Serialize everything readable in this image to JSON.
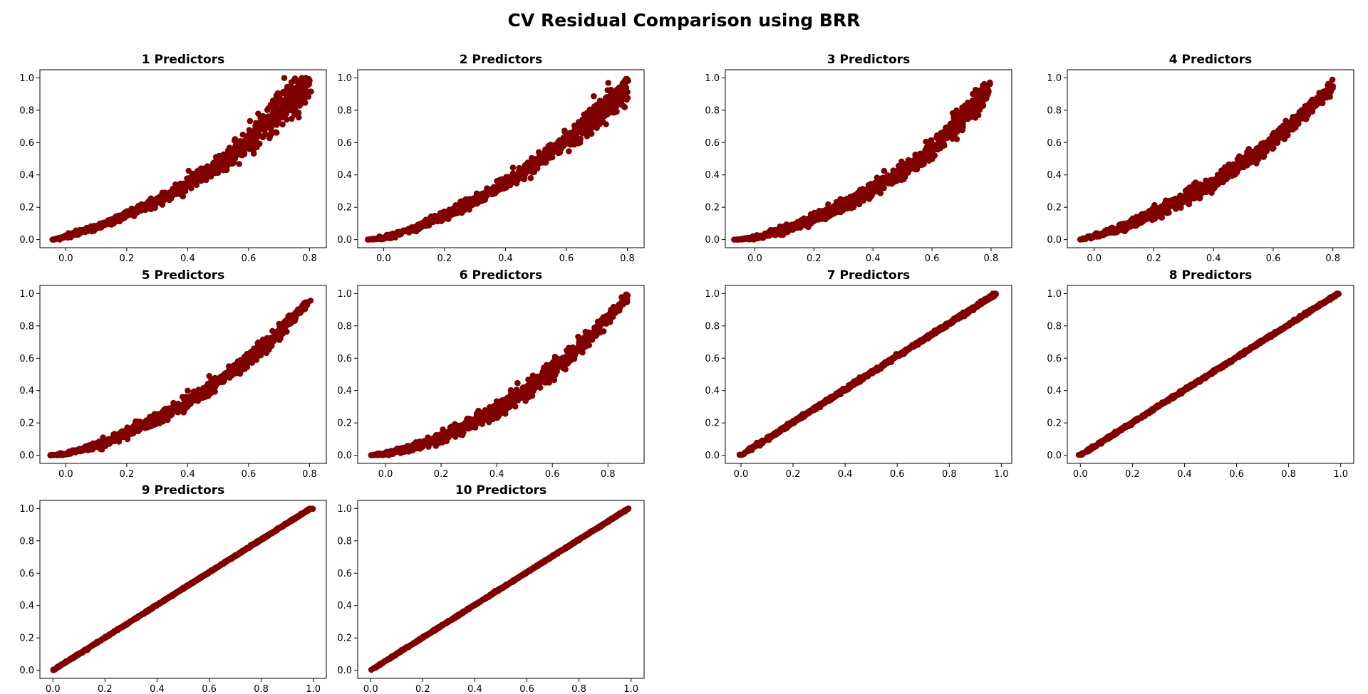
{
  "figure": {
    "title": "CV Residual Comparison using BRR",
    "marker_color": "#800000"
  },
  "chart_data": [
    {
      "type": "scatter",
      "title": "1 Predictors",
      "xlim": [
        -0.085,
        0.855
      ],
      "ylim": [
        -0.05,
        1.05
      ],
      "xticks": [
        0.0,
        0.2,
        0.4,
        0.6,
        0.8
      ],
      "xtick_labels": [
        "0.0",
        "0.2",
        "0.4",
        "0.6",
        "0.8"
      ],
      "yticks": [
        0.0,
        0.2,
        0.4,
        0.6,
        0.8,
        1.0
      ],
      "ytick_labels": [
        "0.0",
        "0.2",
        "0.4",
        "0.6",
        "0.8",
        "1.0"
      ],
      "trend_x": [
        -0.04,
        0.0,
        0.1,
        0.2,
        0.3,
        0.4,
        0.5,
        0.6,
        0.7,
        0.8
      ],
      "trend_y": [
        0.0,
        0.02,
        0.08,
        0.15,
        0.24,
        0.34,
        0.46,
        0.61,
        0.8,
        0.97
      ],
      "spread": [
        0.0,
        0.01,
        0.015,
        0.02,
        0.025,
        0.035,
        0.05,
        0.06,
        0.1,
        0.08
      ],
      "grid": false
    },
    {
      "type": "scatter",
      "title": "2 Predictors",
      "xlim": [
        -0.085,
        0.855
      ],
      "ylim": [
        -0.05,
        1.05
      ],
      "xticks": [
        0.0,
        0.2,
        0.4,
        0.6,
        0.8
      ],
      "xtick_labels": [
        "0.0",
        "0.2",
        "0.4",
        "0.6",
        "0.8"
      ],
      "yticks": [
        0.0,
        0.2,
        0.4,
        0.6,
        0.8,
        1.0
      ],
      "ytick_labels": [
        "0.0",
        "0.2",
        "0.4",
        "0.6",
        "0.8",
        "1.0"
      ],
      "trend_x": [
        -0.05,
        0.0,
        0.1,
        0.2,
        0.3,
        0.4,
        0.5,
        0.6,
        0.7,
        0.8
      ],
      "trend_y": [
        0.0,
        0.01,
        0.07,
        0.15,
        0.24,
        0.35,
        0.47,
        0.61,
        0.77,
        0.95
      ],
      "spread": [
        0.0,
        0.01,
        0.015,
        0.02,
        0.025,
        0.03,
        0.04,
        0.05,
        0.07,
        0.08
      ],
      "grid": false
    },
    {
      "type": "scatter",
      "title": "3 Predictors",
      "xlim": [
        -0.1,
        0.87
      ],
      "ylim": [
        -0.05,
        1.05
      ],
      "xticks": [
        0.0,
        0.2,
        0.4,
        0.6,
        0.8
      ],
      "xtick_labels": [
        "0.0",
        "0.2",
        "0.4",
        "0.6",
        "0.8"
      ],
      "yticks": [
        0.0,
        0.2,
        0.4,
        0.6,
        0.8,
        1.0
      ],
      "ytick_labels": [
        "0.0",
        "0.2",
        "0.4",
        "0.6",
        "0.8",
        "1.0"
      ],
      "trend_x": [
        -0.06,
        0.0,
        0.1,
        0.2,
        0.3,
        0.4,
        0.5,
        0.6,
        0.7,
        0.8
      ],
      "trend_y": [
        0.0,
        0.01,
        0.06,
        0.13,
        0.21,
        0.31,
        0.42,
        0.56,
        0.74,
        0.95
      ],
      "spread": [
        0.0,
        0.01,
        0.02,
        0.025,
        0.03,
        0.035,
        0.04,
        0.05,
        0.06,
        0.05
      ],
      "grid": false
    },
    {
      "type": "scatter",
      "title": "4 Predictors",
      "xlim": [
        -0.09,
        0.87
      ],
      "ylim": [
        -0.05,
        1.05
      ],
      "xticks": [
        0.0,
        0.2,
        0.4,
        0.6,
        0.8
      ],
      "xtick_labels": [
        "0.0",
        "0.2",
        "0.4",
        "0.6",
        "0.8"
      ],
      "yticks": [
        0.0,
        0.2,
        0.4,
        0.6,
        0.8,
        1.0
      ],
      "ytick_labels": [
        "0.0",
        "0.2",
        "0.4",
        "0.6",
        "0.8",
        "1.0"
      ],
      "trend_x": [
        -0.05,
        0.0,
        0.1,
        0.2,
        0.3,
        0.4,
        0.5,
        0.6,
        0.7,
        0.8
      ],
      "trend_y": [
        0.0,
        0.02,
        0.08,
        0.16,
        0.25,
        0.35,
        0.47,
        0.61,
        0.77,
        0.95
      ],
      "spread": [
        0.0,
        0.01,
        0.02,
        0.03,
        0.035,
        0.04,
        0.04,
        0.04,
        0.035,
        0.03
      ],
      "grid": false
    },
    {
      "type": "scatter",
      "title": "5 Predictors",
      "xlim": [
        -0.085,
        0.855
      ],
      "ylim": [
        -0.05,
        1.05
      ],
      "xticks": [
        0.0,
        0.2,
        0.4,
        0.6,
        0.8
      ],
      "xtick_labels": [
        "0.0",
        "0.2",
        "0.4",
        "0.6",
        "0.8"
      ],
      "yticks": [
        0.0,
        0.2,
        0.4,
        0.6,
        0.8,
        1.0
      ],
      "ytick_labels": [
        "0.0",
        "0.2",
        "0.4",
        "0.6",
        "0.8",
        "1.0"
      ],
      "trend_x": [
        -0.05,
        0.0,
        0.1,
        0.2,
        0.3,
        0.4,
        0.5,
        0.6,
        0.7,
        0.8
      ],
      "trend_y": [
        0.0,
        0.01,
        0.06,
        0.14,
        0.23,
        0.33,
        0.45,
        0.59,
        0.76,
        0.96
      ],
      "spread": [
        0.0,
        0.01,
        0.02,
        0.025,
        0.03,
        0.035,
        0.035,
        0.035,
        0.03,
        0.02
      ],
      "grid": false
    },
    {
      "type": "scatter",
      "title": "6 Predictors",
      "xlim": [
        -0.1,
        0.93
      ],
      "ylim": [
        -0.05,
        1.05
      ],
      "xticks": [
        0.0,
        0.2,
        0.4,
        0.6,
        0.8
      ],
      "xtick_labels": [
        "0.0",
        "0.2",
        "0.4",
        "0.6",
        "0.8"
      ],
      "yticks": [
        0.0,
        0.2,
        0.4,
        0.6,
        0.8,
        1.0
      ],
      "ytick_labels": [
        "0.0",
        "0.2",
        "0.4",
        "0.6",
        "0.8",
        "1.0"
      ],
      "trend_x": [
        -0.05,
        0.0,
        0.1,
        0.2,
        0.3,
        0.4,
        0.5,
        0.6,
        0.7,
        0.8,
        0.87
      ],
      "trend_y": [
        0.0,
        0.01,
        0.05,
        0.11,
        0.19,
        0.28,
        0.39,
        0.52,
        0.67,
        0.85,
        0.98
      ],
      "spread": [
        0.0,
        0.01,
        0.02,
        0.03,
        0.035,
        0.04,
        0.045,
        0.045,
        0.04,
        0.03,
        0.02
      ],
      "grid": false
    },
    {
      "type": "scatter",
      "title": "7 Predictors",
      "xlim": [
        -0.06,
        1.04
      ],
      "ylim": [
        -0.05,
        1.05
      ],
      "xticks": [
        0.0,
        0.2,
        0.4,
        0.6,
        0.8,
        1.0
      ],
      "xtick_labels": [
        "0.0",
        "0.2",
        "0.4",
        "0.6",
        "0.8",
        "1.0"
      ],
      "yticks": [
        0.0,
        0.2,
        0.4,
        0.6,
        0.8,
        1.0
      ],
      "ytick_labels": [
        "0.0",
        "0.2",
        "0.4",
        "0.6",
        "0.8",
        "1.0"
      ],
      "trend_x": [
        0.0,
        0.98
      ],
      "trend_y": [
        0.0,
        1.0
      ],
      "spread": [
        0.008,
        0.008
      ],
      "grid": false
    },
    {
      "type": "scatter",
      "title": "8 Predictors",
      "xlim": [
        -0.05,
        1.05
      ],
      "ylim": [
        -0.05,
        1.05
      ],
      "xticks": [
        0.0,
        0.2,
        0.4,
        0.6,
        0.8,
        1.0
      ],
      "xtick_labels": [
        "0.0",
        "0.2",
        "0.4",
        "0.6",
        "0.8",
        "1.0"
      ],
      "yticks": [
        0.0,
        0.2,
        0.4,
        0.6,
        0.8,
        1.0
      ],
      "ytick_labels": [
        "0.0",
        "0.2",
        "0.4",
        "0.6",
        "0.8",
        "1.0"
      ],
      "trend_x": [
        0.0,
        0.99
      ],
      "trend_y": [
        0.0,
        1.0
      ],
      "spread": [
        0.006,
        0.006
      ],
      "grid": false
    },
    {
      "type": "scatter",
      "title": "9 Predictors",
      "xlim": [
        -0.05,
        1.05
      ],
      "ylim": [
        -0.05,
        1.05
      ],
      "xticks": [
        0.0,
        0.2,
        0.4,
        0.6,
        0.8,
        1.0
      ],
      "xtick_labels": [
        "0.0",
        "0.2",
        "0.4",
        "0.6",
        "0.8",
        "1.0"
      ],
      "yticks": [
        0.0,
        0.2,
        0.4,
        0.6,
        0.8,
        1.0
      ],
      "ytick_labels": [
        "0.0",
        "0.2",
        "0.4",
        "0.6",
        "0.8",
        "1.0"
      ],
      "trend_x": [
        0.0,
        0.99
      ],
      "trend_y": [
        0.0,
        1.0
      ],
      "spread": [
        0.003,
        0.003
      ],
      "grid": false
    },
    {
      "type": "scatter",
      "title": "10 Predictors",
      "xlim": [
        -0.05,
        1.05
      ],
      "ylim": [
        -0.05,
        1.05
      ],
      "xticks": [
        0.0,
        0.2,
        0.4,
        0.6,
        0.8,
        1.0
      ],
      "xtick_labels": [
        "0.0",
        "0.2",
        "0.4",
        "0.6",
        "0.8",
        "1.0"
      ],
      "yticks": [
        0.0,
        0.2,
        0.4,
        0.6,
        0.8,
        1.0
      ],
      "ytick_labels": [
        "0.0",
        "0.2",
        "0.4",
        "0.6",
        "0.8",
        "1.0"
      ],
      "trend_x": [
        0.0,
        0.99
      ],
      "trend_y": [
        0.0,
        1.0
      ],
      "spread": [
        0.003,
        0.003
      ],
      "grid": false
    }
  ]
}
